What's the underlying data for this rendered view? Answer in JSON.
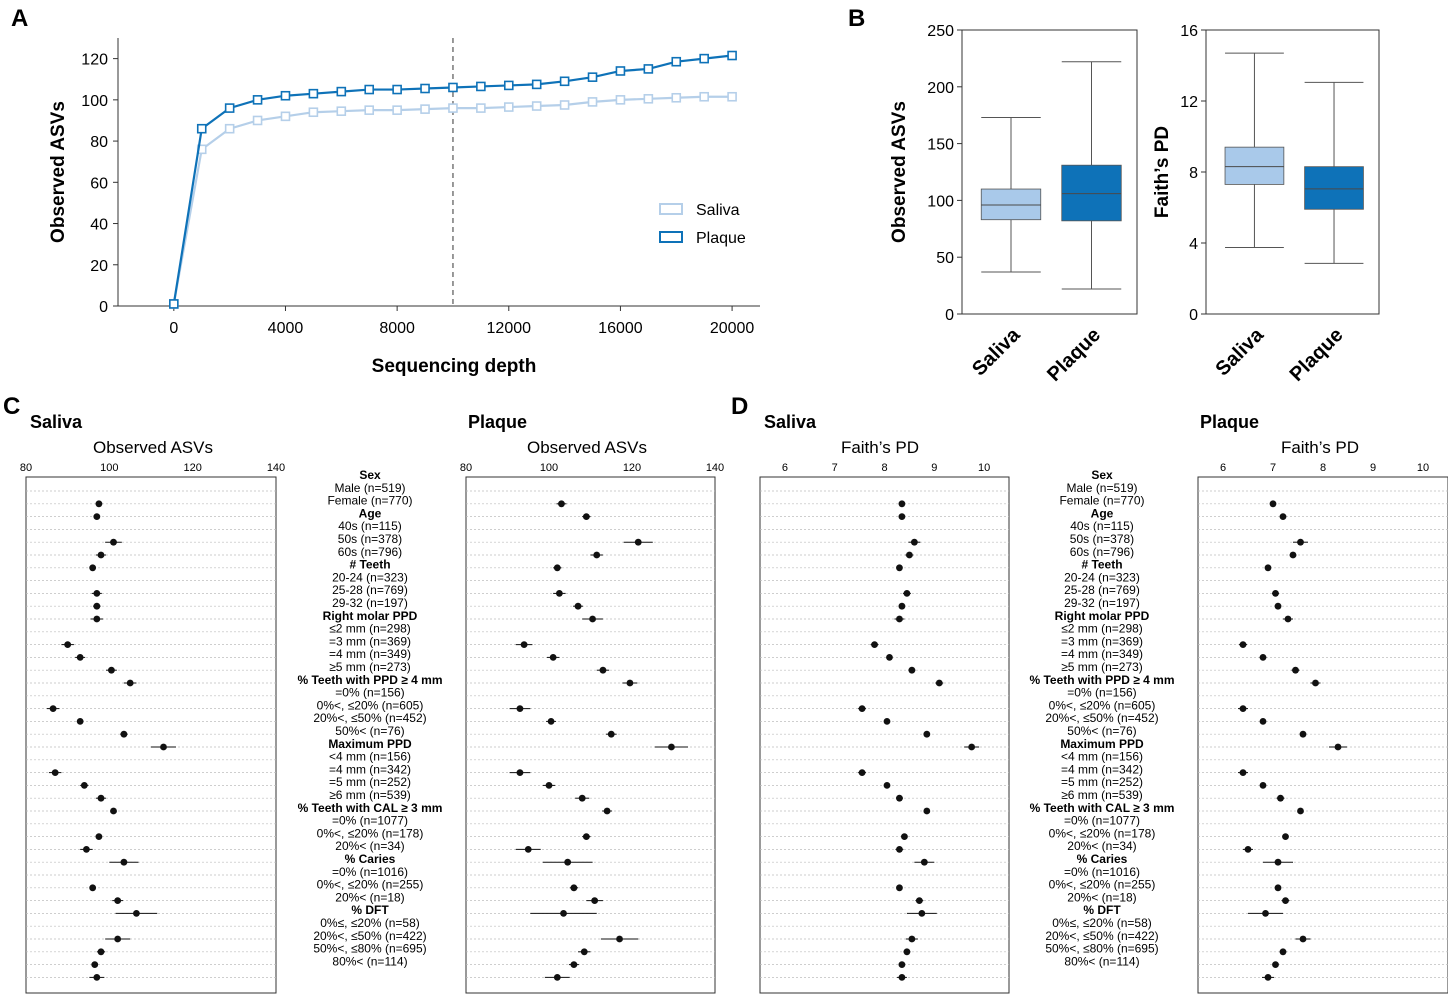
{
  "colors": {
    "saliva": "#a9c9ea",
    "saliva_line": "#b5cfe9",
    "plaque": "#0e72b8",
    "axis": "#333333",
    "grid": "#bdbdbd",
    "dot": "#111111",
    "dashed": "#808080"
  },
  "panel_labels": {
    "a": "A",
    "b": "B",
    "c": "C",
    "d": "D"
  },
  "forest_labels": [
    "Sex",
    "Male (n=519)",
    "Female (n=770)",
    "Age",
    "40s (n=115)",
    "50s (n=378)",
    "60s (n=796)",
    "# Teeth",
    "20-24 (n=323)",
    "25-28 (n=769)",
    "29-32 (n=197)",
    "Right molar PPD",
    "≤2 mm (n=298)",
    "=3 mm (n=369)",
    "=4 mm (n=349)",
    "≥5 mm (n=273)",
    "% Teeth with PPD ≥ 4 mm",
    "=0% (n=156)",
    "0%<, ≤20% (n=605)",
    "20%<, ≤50% (n=452)",
    "50%< (n=76)",
    "Maximum PPD",
    "<4 mm (n=156)",
    "=4 mm (n=342)",
    "=5 mm (n=252)",
    "≥6 mm (n=539)",
    "% Teeth with CAL ≥ 3 mm",
    "=0% (n=1077)",
    "0%<, ≤20% (n=178)",
    "20%< (n=34)",
    "% Caries",
    "=0% (n=1016)",
    "0%<, ≤20% (n=255)",
    "20%< (n=18)",
    "% DFT",
    "0%≤, ≤20% (n=58)",
    "20%<, ≤50% (n=422)",
    "50%<, ≤80% (n=695)",
    "80%< (n=114)"
  ],
  "chart_data": [
    {
      "panel": "A",
      "type": "line",
      "xlabel": "Sequencing depth",
      "ylabel": "Observed ASVs",
      "xlim": [
        -2000,
        21000
      ],
      "ylim": [
        0,
        130
      ],
      "xticks": [
        "0",
        "4000",
        "8000",
        "12000",
        "16000",
        "20000"
      ],
      "yticks": [
        "0",
        "20",
        "40",
        "60",
        "80",
        "100",
        "120"
      ],
      "vline_x": 10000,
      "x": [
        0,
        1000,
        2000,
        3000,
        4000,
        5000,
        6000,
        7000,
        8000,
        9000,
        10000,
        11000,
        12000,
        13000,
        14000,
        15000,
        16000,
        17000,
        18000,
        19000,
        20000
      ],
      "series": [
        {
          "name": "Saliva",
          "values": [
            1,
            76,
            86,
            90,
            92,
            94,
            94.5,
            95,
            95,
            95.5,
            96,
            96,
            96.5,
            97,
            97.5,
            99,
            100,
            100.5,
            101,
            101.5,
            101.5
          ]
        },
        {
          "name": "Plaque",
          "values": [
            1,
            86,
            96,
            100,
            102,
            103,
            104,
            105,
            105,
            105.5,
            106,
            106.5,
            107,
            107.5,
            109,
            111,
            114,
            115,
            118.5,
            120,
            121.5
          ]
        }
      ]
    },
    {
      "panel": "B1",
      "type": "box",
      "ylabel": "Observed ASVs",
      "ylim": [
        0,
        250
      ],
      "yticks": [
        "0",
        "50",
        "100",
        "150",
        "200",
        "250"
      ],
      "categories": [
        "Saliva",
        "Plaque"
      ],
      "boxes": [
        {
          "min": 37,
          "q1": 83,
          "median": 96,
          "q3": 110,
          "max": 173
        },
        {
          "min": 22,
          "q1": 82,
          "median": 106,
          "q3": 131,
          "max": 222
        }
      ]
    },
    {
      "panel": "B2",
      "type": "box",
      "ylabel": "Faith’s PD",
      "ylim": [
        0,
        16
      ],
      "yticks": [
        "0",
        "4",
        "8",
        "12",
        "16"
      ],
      "categories": [
        "Saliva",
        "Plaque"
      ],
      "boxes": [
        {
          "min": 3.75,
          "q1": 7.3,
          "median": 8.3,
          "q3": 9.4,
          "max": 14.7
        },
        {
          "min": 2.85,
          "q1": 5.9,
          "median": 7.05,
          "q3": 8.3,
          "max": 13.05
        }
      ]
    },
    {
      "panel": "C-Saliva",
      "type": "forest",
      "group": "Saliva",
      "metric": "Observed ASVs",
      "xlim": [
        80,
        140
      ],
      "xticks": [
        "80",
        "100",
        "120",
        "140"
      ],
      "values": [
        null,
        97.5,
        97,
        null,
        101,
        98,
        96,
        null,
        97,
        97,
        97,
        null,
        90,
        93,
        100.5,
        105,
        null,
        86.5,
        93,
        103.5,
        113,
        null,
        87,
        94,
        98,
        101,
        null,
        97.5,
        94.5,
        103.5,
        null,
        96,
        102,
        106.5,
        null,
        102,
        98,
        96.5,
        97
      ],
      "errors": [
        null,
        0.8,
        0.6,
        null,
        2,
        1.2,
        0.7,
        null,
        1.2,
        0.9,
        1.5,
        null,
        1.5,
        1.2,
        1.3,
        1.5,
        null,
        1.5,
        0.8,
        0.9,
        3,
        null,
        1.5,
        1,
        1.2,
        0.8,
        null,
        0.6,
        1.5,
        3.5,
        null,
        0.6,
        1.3,
        5,
        null,
        3,
        1,
        0.7,
        1.8
      ]
    },
    {
      "panel": "C-Plaque",
      "type": "forest",
      "group": "Plaque",
      "metric": "Observed ASVs",
      "xlim": [
        80,
        140
      ],
      "xticks": [
        "80",
        "100",
        "120",
        "140"
      ],
      "values": [
        null,
        103,
        109,
        null,
        121.5,
        111.5,
        102,
        null,
        102.5,
        107,
        110.5,
        null,
        94,
        101,
        113,
        119.5,
        null,
        93,
        100.5,
        115,
        129.5,
        null,
        93,
        100,
        108,
        114,
        null,
        109,
        95,
        104.5,
        null,
        106,
        111,
        103.5,
        null,
        117,
        108.5,
        106,
        102
      ],
      "errors": [
        null,
        1.2,
        1,
        null,
        3.5,
        1.5,
        1,
        null,
        1.5,
        1.2,
        2.5,
        null,
        2,
        1.5,
        1.5,
        1.8,
        null,
        2.5,
        1.2,
        1.3,
        4,
        null,
        2.5,
        1.5,
        1.7,
        1.2,
        null,
        1,
        3,
        6,
        null,
        1,
        2,
        8,
        null,
        4.5,
        1.5,
        1.2,
        3
      ]
    },
    {
      "panel": "D-Saliva",
      "type": "forest",
      "group": "Saliva",
      "metric": "Faith’s PD",
      "xlim": [
        5.5,
        10.5
      ],
      "xticks": [
        "6",
        "7",
        "8",
        "9",
        "10"
      ],
      "values": [
        null,
        8.35,
        8.35,
        null,
        8.6,
        8.5,
        8.3,
        null,
        8.45,
        8.35,
        8.3,
        null,
        7.8,
        8.1,
        8.55,
        9.1,
        null,
        7.55,
        8.05,
        8.85,
        9.75,
        null,
        7.55,
        8.05,
        8.3,
        8.85,
        null,
        8.4,
        8.3,
        8.8,
        null,
        8.3,
        8.7,
        8.75,
        null,
        8.55,
        8.45,
        8.35,
        8.35
      ],
      "errors": [
        null,
        0.06,
        0.05,
        null,
        0.12,
        0.08,
        0.05,
        null,
        0.08,
        0.06,
        0.1,
        null,
        0.08,
        0.06,
        0.07,
        0.08,
        null,
        0.08,
        0.05,
        0.05,
        0.15,
        null,
        0.08,
        0.05,
        0.07,
        0.05,
        null,
        0.04,
        0.08,
        0.2,
        null,
        0.05,
        0.08,
        0.3,
        null,
        0.12,
        0.07,
        0.05,
        0.1
      ]
    },
    {
      "panel": "D-Plaque",
      "type": "forest",
      "group": "Plaque",
      "metric": "Faith’s PD",
      "xlim": [
        5.5,
        10.5
      ],
      "xticks": [
        "6",
        "7",
        "8",
        "9",
        "10"
      ],
      "values": [
        null,
        7.0,
        7.2,
        null,
        7.55,
        7.4,
        6.9,
        null,
        7.05,
        7.1,
        7.3,
        null,
        6.4,
        6.8,
        7.45,
        7.85,
        null,
        6.4,
        6.8,
        7.6,
        8.3,
        null,
        6.4,
        6.8,
        7.15,
        7.55,
        null,
        7.25,
        6.5,
        7.1,
        null,
        7.1,
        7.25,
        6.85,
        null,
        7.6,
        7.2,
        7.05,
        6.9
      ],
      "errors": [
        null,
        0.05,
        0.05,
        null,
        0.15,
        0.07,
        0.05,
        null,
        0.07,
        0.05,
        0.1,
        null,
        0.08,
        0.07,
        0.08,
        0.1,
        null,
        0.1,
        0.05,
        0.06,
        0.18,
        null,
        0.1,
        0.06,
        0.08,
        0.05,
        null,
        0.05,
        0.1,
        0.3,
        null,
        0.05,
        0.08,
        0.35,
        null,
        0.15,
        0.07,
        0.05,
        0.12
      ]
    }
  ]
}
